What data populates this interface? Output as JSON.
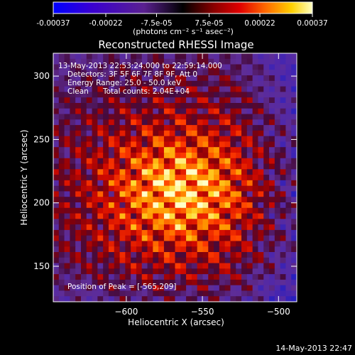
{
  "colorbar": {
    "tick_labels": [
      "-0.00037",
      "-0.00022",
      "-7.5e-05",
      "7.5e-05",
      "0.00022",
      "0.00037"
    ],
    "tick_values": [
      -0.00037,
      -0.00022,
      -7.5e-05,
      7.5e-05,
      0.00022,
      0.00037
    ],
    "range": [
      -0.00037,
      0.00037
    ],
    "units_label": "(photons cm⁻² s⁻¹ asec⁻²)"
  },
  "title": "Reconstructed RHESSI Image",
  "info": {
    "time_range": "13-May-2013 22:53:24.000 to 22:59:14.000",
    "detectors": "Detectors: 3F 5F 6F 7F 8F 9F, Att 0",
    "energy_range": "Energy Range: 25.0 - 50.0 keV",
    "algorithm": "Clean",
    "total_counts": "Total counts: 2.04E+04"
  },
  "peak_text": "Position of Peak = [-565,209]",
  "footer_timestamp": "14-May-2013 22:47",
  "chart_data": {
    "type": "heatmap",
    "title": "Reconstructed RHESSI Image",
    "xlabel": "Heliocentric X (arcsec)",
    "ylabel": "Heliocentric Y (arcsec)",
    "xlim": [
      -648,
      -488
    ],
    "ylim": [
      122,
      318
    ],
    "x_ticks": [
      -600,
      -550,
      -500
    ],
    "x_tick_labels": [
      "−600",
      "−550",
      "−500"
    ],
    "y_ticks": [
      150,
      200,
      250,
      300
    ],
    "y_tick_labels": [
      "150",
      "200",
      "250",
      "300"
    ],
    "peak": [
      -565,
      209
    ],
    "colormap": "blue-purple-red-yellow-white",
    "value_range": [
      -0.00037,
      0.00037
    ],
    "grid": false
  },
  "colors": {
    "background": "#000000",
    "text": "#ffffff"
  }
}
